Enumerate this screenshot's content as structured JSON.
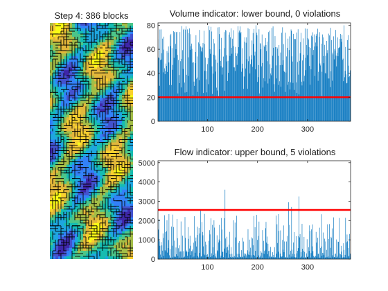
{
  "colors": {
    "bar": "#0072BD",
    "threshold": "#FF0000",
    "axis": "#262626"
  },
  "partition_map": {
    "title": "Step 4: 386 blocks",
    "colormap": "parula",
    "block_count": 386
  },
  "chart_data": [
    {
      "type": "bar",
      "title": "Volume indicator: lower bound, 0 violations",
      "xlabel": "",
      "ylabel": "",
      "xlim": [
        1,
        386
      ],
      "ylim": [
        0,
        82
      ],
      "xticks": [
        100,
        200,
        300
      ],
      "yticks": [
        0,
        20,
        40,
        60,
        80
      ],
      "threshold": 20,
      "series": [
        {
          "count": 386,
          "min": 20,
          "max": 80
        }
      ]
    },
    {
      "type": "bar",
      "title": "Flow indicator: upper bound, 5 violations",
      "xlabel": "",
      "ylabel": "",
      "xlim": [
        1,
        386
      ],
      "ylim": [
        0,
        5100
      ],
      "xticks": [
        100,
        200,
        300
      ],
      "yticks": [
        0,
        1000,
        2000,
        3000,
        4000,
        5000
      ],
      "threshold": 2550,
      "series": [
        {
          "count": 386,
          "min": 80,
          "max": 3600
        }
      ],
      "peaks": [
        [
          135,
          3600
        ],
        [
          262,
          2950
        ],
        [
          268,
          2700
        ],
        [
          283,
          3250
        ],
        [
          86,
          2580
        ]
      ]
    }
  ]
}
